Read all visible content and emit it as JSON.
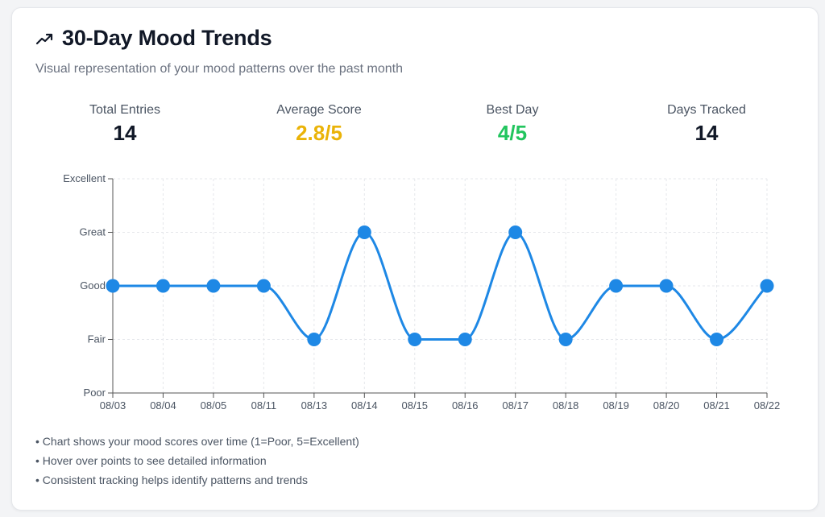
{
  "header": {
    "title": "30-Day Mood Trends",
    "subtitle": "Visual representation of your mood patterns over the past month",
    "icon": "trending-up-icon"
  },
  "stats": [
    {
      "label": "Total Entries",
      "value": "14",
      "color": "#111827"
    },
    {
      "label": "Average Score",
      "value": "2.8/5",
      "color": "#eab308"
    },
    {
      "label": "Best Day",
      "value": "4/5",
      "color": "#22c55e"
    },
    {
      "label": "Days Tracked",
      "value": "14",
      "color": "#111827"
    }
  ],
  "chart_data": {
    "type": "line",
    "x": [
      "08/03",
      "08/04",
      "08/05",
      "08/11",
      "08/13",
      "08/14",
      "08/15",
      "08/16",
      "08/17",
      "08/18",
      "08/19",
      "08/20",
      "08/21",
      "08/22"
    ],
    "series": [
      {
        "values": [
          3,
          3,
          3,
          3,
          2,
          4,
          2,
          2,
          4,
          2,
          3,
          3,
          2,
          3
        ],
        "color": "#1e88e5"
      }
    ],
    "y_ticks": [
      {
        "value": 1,
        "label": "Poor"
      },
      {
        "value": 2,
        "label": "Fair"
      },
      {
        "value": 3,
        "label": "Good"
      },
      {
        "value": 4,
        "label": "Great"
      },
      {
        "value": 5,
        "label": "Excellent"
      }
    ],
    "ylim": [
      1,
      5
    ],
    "grid": true,
    "smooth": true
  },
  "notes": [
    "• Chart shows your mood scores over time (1=Poor, 5=Excellent)",
    "• Hover over points to see detailed information",
    "• Consistent tracking helps identify patterns and trends"
  ]
}
